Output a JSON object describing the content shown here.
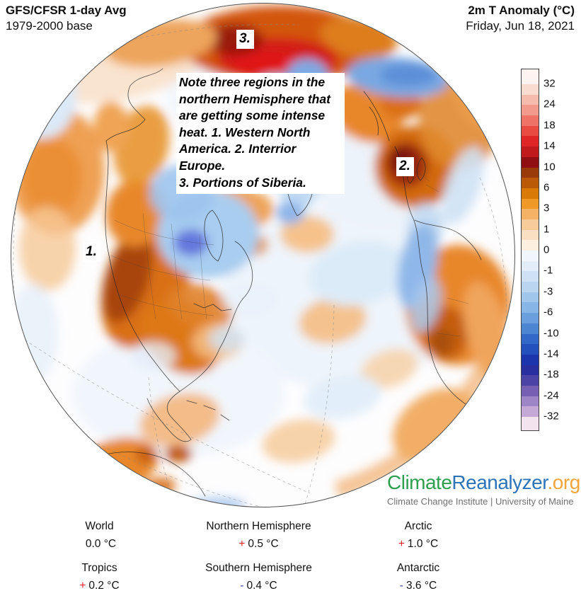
{
  "header": {
    "title_left": "GFS/CFSR 1-day Avg",
    "subtitle_left": "1979-2000 base",
    "title_right": "2m T Anomaly (°C)",
    "subtitle_right": "Friday, Jun 18, 2021"
  },
  "map": {
    "annotation_note": "Note three regions in the\nnorthern Hemisphere that\nare getting some intense\nheat.  1. Western North\nAmerica. 2. Interrior Europe.\n3. Portions of Siberia.",
    "markers": [
      "1.",
      "2.",
      "3."
    ]
  },
  "colorbar": {
    "tick_labels": [
      "32",
      "24",
      "18",
      "14",
      "10",
      "6",
      "3",
      "1",
      "0",
      "-1",
      "-3",
      "-6",
      "-10",
      "-14",
      "-18",
      "-24",
      "-32"
    ],
    "band_colors": [
      "#fdf3f0",
      "#f9dbd0",
      "#f5bcae",
      "#f29b8d",
      "#ee7265",
      "#e84b41",
      "#de2626",
      "#c01a1c",
      "#8f0f12",
      "#9a3a08",
      "#bb5a06",
      "#d97a07",
      "#ef9a28",
      "#f4b266",
      "#f8cc9a",
      "#fbdfc2",
      "#fdefe0",
      "#f0f6fc",
      "#e2edf9",
      "#cfe2f5",
      "#b9d5f0",
      "#a0c6ec",
      "#86b5e6",
      "#699fdd",
      "#4c86d2",
      "#3468c8",
      "#2450bd",
      "#1c35ad",
      "#2a2f9f",
      "#4c43a6",
      "#7560b4",
      "#9e85c5",
      "#c4a8d6",
      "#f2e3ee"
    ]
  },
  "logo": {
    "part1": "Climate",
    "part2": "Reanalyzer",
    "part3": ".org",
    "colors": {
      "part1": "#2f9e4f",
      "part2": "#2e74b8",
      "part3": "#f0a63a"
    },
    "subtitle": "Climate Change Institute | University of Maine"
  },
  "stats": [
    {
      "label": "World",
      "sign": "",
      "value": "0.0 °C"
    },
    {
      "label": "Northern Hemisphere",
      "sign": "+",
      "value": "0.5 °C"
    },
    {
      "label": "Arctic",
      "sign": "+",
      "value": "1.0 °C"
    },
    {
      "label": "Tropics",
      "sign": "+",
      "value": "0.2 °C"
    },
    {
      "label": "Southern Hemisphere",
      "sign": "-",
      "value": "0.4 °C"
    },
    {
      "label": "Antarctic",
      "sign": "-",
      "value": "3.6 °C"
    }
  ],
  "sign_colors": {
    "plus": "#e02127",
    "minus": "#3c3f9f"
  }
}
